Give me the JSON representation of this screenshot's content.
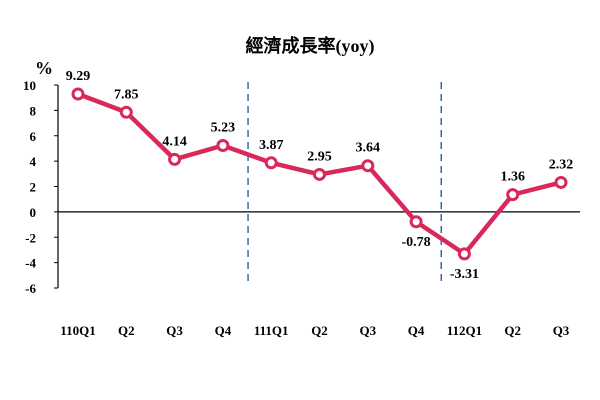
{
  "chart_data": {
    "type": "line",
    "title": "經濟成長率(yoy)",
    "unit_label": "%",
    "categories": [
      "110Q1",
      "Q2",
      "Q3",
      "Q4",
      "111Q1",
      "Q2",
      "Q3",
      "Q4",
      "112Q1",
      "Q2",
      "Q3"
    ],
    "series": [
      {
        "values": [
          9.29,
          7.85,
          4.14,
          5.23,
          3.87,
          2.95,
          3.64,
          -0.78,
          -3.31,
          1.36,
          2.32
        ]
      }
    ],
    "data_labels": [
      "9.29",
      "7.85",
      "4.14",
      "5.23",
      "3.87",
      "2.95",
      "3.64",
      "-0.78",
      "-3.31",
      "1.36",
      "2.32"
    ],
    "yticks": [
      "10",
      "8",
      "6",
      "4",
      "2",
      "0",
      "-2",
      "-4",
      "-6"
    ],
    "ylim": [
      -6,
      10
    ],
    "year_dividers_between": [
      [
        3,
        4
      ],
      [
        7,
        8
      ]
    ],
    "grid": false,
    "legend": "none",
    "colors": {
      "line": "#d9285a",
      "marker_fill": "#ffffff",
      "divider": "#2e5da8",
      "axis": "#000000"
    }
  }
}
